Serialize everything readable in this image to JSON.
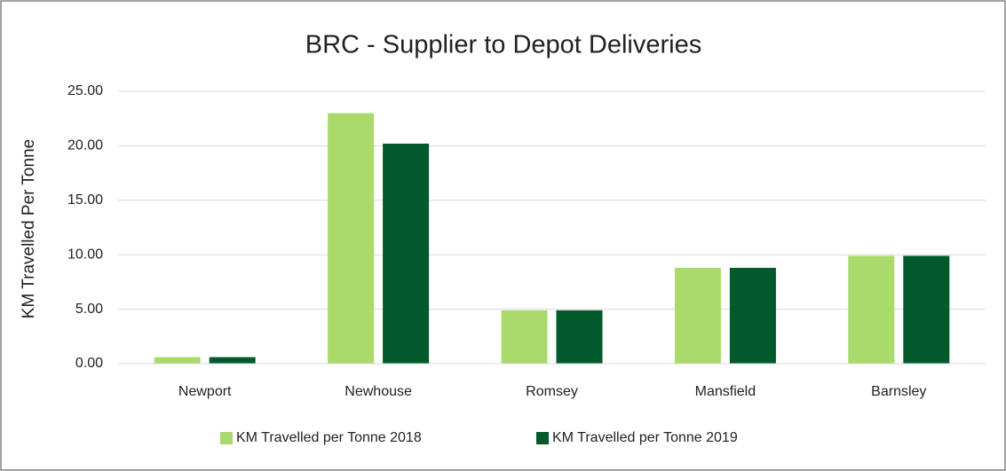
{
  "chart_data": {
    "type": "bar",
    "title": "BRC - Supplier to Depot Deliveries",
    "y_label": "KM Travelled Per Tonne",
    "categories": [
      "Newport",
      "Newhouse",
      "Romsey",
      "Mansfield",
      "Barnsley"
    ],
    "series": [
      {
        "name": "KM Travelled per Tonne 2018",
        "color": "#a9da6b",
        "values": [
          0.6,
          23.0,
          4.9,
          8.8,
          9.9
        ]
      },
      {
        "name": "KM Travelled per Tonne 2019",
        "color": "#005a2b",
        "values": [
          0.6,
          20.2,
          4.9,
          8.8,
          9.9
        ]
      }
    ],
    "ylim": [
      0,
      25
    ],
    "yticks": [
      {
        "value": 0,
        "label": "0.00"
      },
      {
        "value": 5,
        "label": "5.00"
      },
      {
        "value": 10,
        "label": "10.00"
      },
      {
        "value": 15,
        "label": "15.00"
      },
      {
        "value": 20,
        "label": "20.00"
      },
      {
        "value": 25,
        "label": "25.00"
      }
    ],
    "grid": true,
    "legend": "bottom"
  }
}
